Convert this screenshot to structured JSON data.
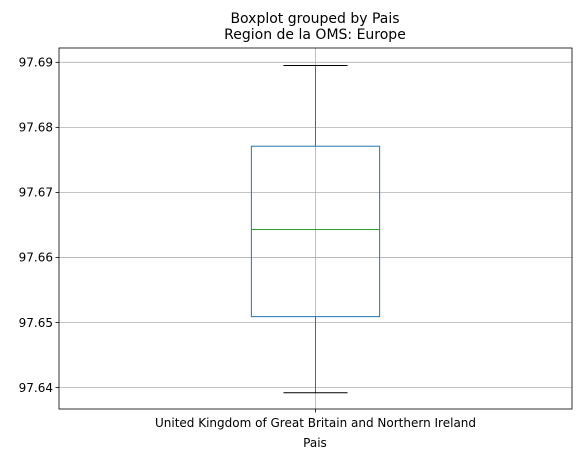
{
  "chart_data": {
    "type": "box",
    "suptitle": "Boxplot grouped by Pais",
    "title": "Region de la OMS: Europe",
    "xlabel": "Pais",
    "ylabel": "",
    "categories": [
      "United Kingdom of Great Britain and Northern Ireland"
    ],
    "boxes": [
      {
        "category": "United Kingdom of Great Britain and Northern Ireland",
        "whisker_low": 97.6392,
        "q1": 97.6509,
        "median": 97.6643,
        "q3": 97.6771,
        "whisker_high": 97.6895
      }
    ],
    "ylim": [
      97.6367,
      97.6922
    ],
    "yticks": [
      97.64,
      97.65,
      97.66,
      97.67,
      97.68,
      97.69
    ],
    "ytick_labels": [
      "97.64",
      "97.65",
      "97.66",
      "97.67",
      "97.68",
      "97.69"
    ],
    "grid": true,
    "colors": {
      "box": "#1f77b4",
      "median": "#2ca02c",
      "whisker_cap": "#000000",
      "grid": "#b0b0b0"
    }
  }
}
